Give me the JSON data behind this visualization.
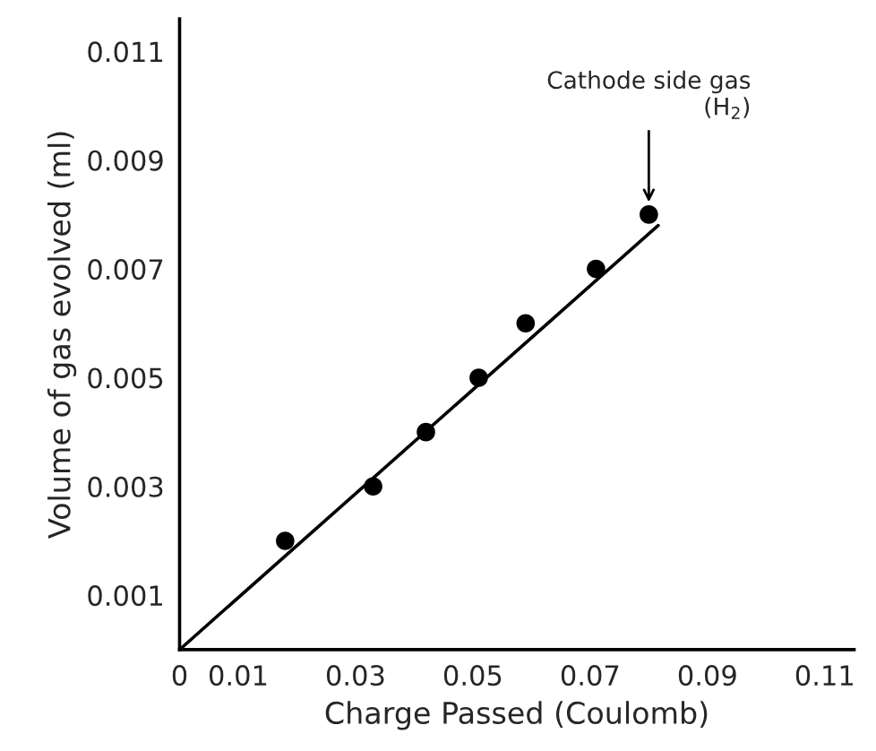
{
  "chart_data": {
    "type": "scatter",
    "xlabel": "Charge Passed (Coulomb)",
    "ylabel": "Volume of gas evolved (ml)",
    "x": [
      0.018,
      0.033,
      0.042,
      0.051,
      0.059,
      0.071,
      0.08
    ],
    "series": [
      {
        "color": "#000000",
        "values": [
          0.002,
          0.003,
          0.004,
          0.005,
          0.006,
          0.007,
          0.008
        ]
      },
      {
        "type": "line",
        "marker": "none",
        "color": "#000000",
        "x": [
          0,
          0.0816
        ],
        "values": [
          0,
          0.0078
        ]
      }
    ],
    "annotations": [
      {
        "text": "Cathode side gas\n(H$_{2}$)",
        "x": 0.08,
        "y": 0.008
      }
    ],
    "xlim": [
      0,
      0.115
    ],
    "ylim": [
      0,
      0.0116
    ],
    "xticks": [
      0,
      0.01,
      0.03,
      0.05,
      0.07,
      0.09,
      0.11
    ],
    "yticks": [
      0.001,
      0.003,
      0.005,
      0.007,
      0.009,
      0.011
    ],
    "marker": "circle",
    "grid": false,
    "legend": false
  }
}
